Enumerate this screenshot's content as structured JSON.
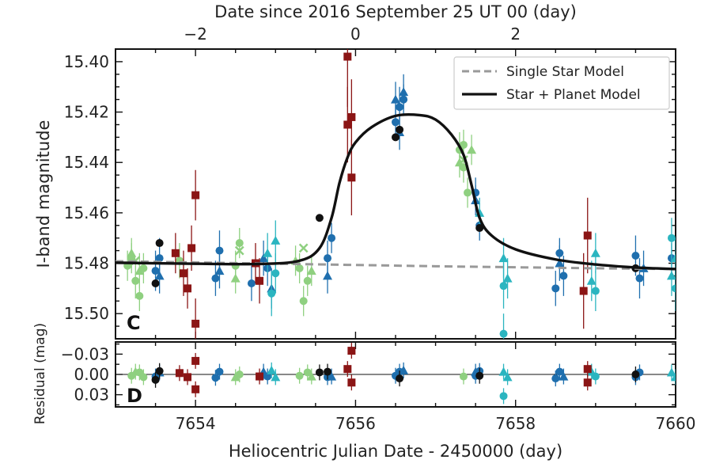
{
  "chart_data": {
    "type": "scatter",
    "colors": {
      "green": "#8fd080",
      "dblue": "#1f6fae",
      "cyan": "#2bb5c0",
      "dred": "#8b1515",
      "black": "#111111",
      "single": "#999999",
      "model": "#111111"
    },
    "top_axis": {
      "label": "Date since 2016 September 25 UT 00 (day)",
      "ticks": [
        {
          "value": -2,
          "label": "−2"
        },
        {
          "value": 0,
          "label": "0"
        },
        {
          "value": 2,
          "label": "2"
        }
      ]
    },
    "main": {
      "ylabel": "I-band magnitude",
      "ylim": [
        15.51,
        15.395
      ],
      "yticks": [
        {
          "value": 15.4,
          "label": "15.40"
        },
        {
          "value": 15.42,
          "label": "15.42"
        },
        {
          "value": 15.44,
          "label": "15.44"
        },
        {
          "value": 15.46,
          "label": "15.46"
        },
        {
          "value": 15.48,
          "label": "15.48"
        },
        {
          "value": 15.5,
          "label": "15.50"
        }
      ],
      "panel_letter": "C",
      "legend": {
        "position": "top-right",
        "entries": [
          {
            "label": "Single Star Model",
            "style": "dashed"
          },
          {
            "label": "Star + Planet Model",
            "style": "solid"
          }
        ]
      },
      "models": {
        "single": {
          "name": "Single Star Model",
          "x": [
            7653.0,
            7654,
            7655,
            7656,
            7657,
            7658,
            7659,
            7660.0
          ],
          "y": [
            15.4792,
            15.4797,
            15.4802,
            15.4807,
            15.4812,
            15.4816,
            15.482,
            15.4823
          ]
        },
        "planet": {
          "name": "Star + Planet Model",
          "x": [
            7653.0,
            7654.0,
            7654.8,
            7655.3,
            7655.55,
            7655.7,
            7655.8,
            7655.9,
            7656.0,
            7656.2,
            7656.5,
            7656.8,
            7657.0,
            7657.2,
            7657.35,
            7657.45,
            7657.55,
            7657.7,
            7658.0,
            7658.5,
            7659.0,
            7659.5,
            7660.0
          ],
          "y": [
            15.4798,
            15.4802,
            15.4803,
            15.479,
            15.474,
            15.462,
            15.448,
            15.438,
            15.432,
            15.426,
            15.4215,
            15.4212,
            15.423,
            15.429,
            15.437,
            15.449,
            15.462,
            15.469,
            15.4745,
            15.4785,
            15.4805,
            15.4817,
            15.4823
          ]
        }
      },
      "series": [
        {
          "color": "green",
          "marker": "circle",
          "points": [
            [
              7653.15,
              15.481,
              0.006
            ],
            [
              7653.2,
              15.478,
              0.006
            ],
            [
              7653.25,
              15.487,
              0.007
            ],
            [
              7653.3,
              15.493,
              0.006
            ],
            [
              7653.35,
              15.482,
              0.006
            ],
            [
              7653.8,
              15.479,
              0.007
            ],
            [
              7654.55,
              15.472,
              0.006
            ],
            [
              7654.5,
              15.481,
              0.006
            ],
            [
              7655.3,
              15.482,
              0.006
            ],
            [
              7655.35,
              15.495,
              0.006
            ],
            [
              7655.4,
              15.487,
              0.006
            ],
            [
              7657.3,
              15.435,
              0.007
            ],
            [
              7657.35,
              15.442,
              0.006
            ],
            [
              7657.4,
              15.452,
              0.006
            ],
            [
              7657.35,
              15.433,
              0.006
            ]
          ]
        },
        {
          "color": "green",
          "marker": "triangle",
          "points": [
            [
              7653.2,
              15.476,
              0.006
            ],
            [
              7653.3,
              15.483,
              0.007
            ],
            [
              7654.5,
              15.486,
              0.006
            ],
            [
              7655.25,
              15.479,
              0.006
            ],
            [
              7655.45,
              15.483,
              0.006
            ],
            [
              7657.3,
              15.44,
              0.006
            ],
            [
              7657.45,
              15.435,
              0.006
            ]
          ]
        },
        {
          "color": "green",
          "marker": "cross",
          "points": [
            [
              7653.25,
              15.479
            ],
            [
              7654.55,
              15.475
            ],
            [
              7655.35,
              15.474
            ],
            [
              7657.35,
              15.439
            ]
          ]
        },
        {
          "color": "dblue",
          "marker": "circle",
          "points": [
            [
              7653.5,
              15.483,
              0.008
            ],
            [
              7653.55,
              15.478,
              0.008
            ],
            [
              7654.25,
              15.486,
              0.007
            ],
            [
              7654.3,
              15.475,
              0.008
            ],
            [
              7654.9,
              15.482,
              0.007
            ],
            [
              7655.65,
              15.478,
              0.007
            ],
            [
              7655.7,
              15.47,
              0.006
            ],
            [
              7656.5,
              15.424,
              0.007
            ],
            [
              7656.55,
              15.418,
              0.008
            ],
            [
              7656.6,
              15.415,
              0.006
            ],
            [
              7657.5,
              15.452,
              0.006
            ],
            [
              7657.55,
              15.465,
              0.006
            ],
            [
              7658.5,
              15.49,
              0.007
            ],
            [
              7658.55,
              15.476,
              0.006
            ],
            [
              7658.6,
              15.485,
              0.008
            ],
            [
              7659.5,
              15.477,
              0.008
            ],
            [
              7659.55,
              15.486,
              0.008
            ],
            [
              7659.95,
              15.478,
              0.006
            ],
            [
              7654.7,
              15.488,
              0.007
            ]
          ]
        },
        {
          "color": "dblue",
          "marker": "triangle",
          "points": [
            [
              7653.55,
              15.485,
              0.007
            ],
            [
              7654.3,
              15.483,
              0.007
            ],
            [
              7654.85,
              15.478,
              0.007
            ],
            [
              7654.95,
              15.49,
              0.008
            ],
            [
              7655.65,
              15.485,
              0.007
            ],
            [
              7656.5,
              15.415,
              0.007
            ],
            [
              7656.55,
              15.428,
              0.007
            ],
            [
              7656.6,
              15.412,
              0.007
            ],
            [
              7657.5,
              15.455,
              0.006
            ],
            [
              7658.55,
              15.48,
              0.007
            ],
            [
              7659.6,
              15.482,
              0.007
            ]
          ]
        },
        {
          "color": "cyan",
          "marker": "triangle",
          "points": [
            [
              7654.9,
              15.476,
              0.008
            ],
            [
              7655.0,
              15.471,
              0.008
            ],
            [
              7657.55,
              15.46,
              0.006
            ],
            [
              7657.85,
              15.478,
              0.008
            ],
            [
              7657.9,
              15.486,
              0.008
            ],
            [
              7658.95,
              15.487,
              0.008
            ],
            [
              7659.0,
              15.476,
              0.008
            ],
            [
              7659.95,
              15.485,
              0.008
            ],
            [
              7660.0,
              15.478,
              0.008
            ]
          ]
        },
        {
          "color": "cyan",
          "marker": "circle",
          "points": [
            [
              7654.95,
              15.492,
              0.009
            ],
            [
              7655.0,
              15.484,
              0.008
            ],
            [
              7657.85,
              15.489,
              0.009
            ],
            [
              7659.0,
              15.491,
              0.008
            ],
            [
              7660.0,
              15.49,
              0.009
            ],
            [
              7659.95,
              15.47,
              0.008
            ],
            [
              7657.85,
              15.508,
              0.008
            ]
          ]
        },
        {
          "color": "dred",
          "marker": "square",
          "points": [
            [
              7653.75,
              15.476,
              0.008
            ],
            [
              7653.85,
              15.484,
              0.009
            ],
            [
              7653.9,
              15.49,
              0.008
            ],
            [
              7653.95,
              15.474,
              0.009
            ],
            [
              7654.0,
              15.453,
              0.01
            ],
            [
              7654.0,
              15.504,
              0.01
            ],
            [
              7654.75,
              15.48,
              0.008
            ],
            [
              7654.8,
              15.487,
              0.009
            ],
            [
              7655.9,
              15.398,
              0.02
            ],
            [
              7655.95,
              15.422,
              0.015
            ],
            [
              7655.95,
              15.446,
              0.015
            ],
            [
              7655.9,
              15.425,
              0.015
            ],
            [
              7658.9,
              15.469,
              0.015
            ],
            [
              7658.85,
              15.491,
              0.015
            ]
          ]
        },
        {
          "color": "black",
          "marker": "circle",
          "points": [
            [
              7653.55,
              15.472
            ],
            [
              7653.5,
              15.488
            ],
            [
              7655.55,
              15.462
            ],
            [
              7656.5,
              15.43
            ],
            [
              7656.55,
              15.427
            ],
            [
              7657.55,
              15.466
            ],
            [
              7659.5,
              15.482
            ]
          ]
        }
      ]
    },
    "residual": {
      "ylabel": "Residual (mag)",
      "ylim": [
        0.048,
        -0.048
      ],
      "yticks": [
        {
          "value": -0.03,
          "label": "−0.03"
        },
        {
          "value": 0.0,
          "label": "0.00"
        },
        {
          "value": 0.03,
          "label": "0.03"
        }
      ],
      "panel_letter": "D",
      "series": [
        {
          "color": "green",
          "marker": "circle",
          "points": [
            [
              7653.2,
              0.002
            ],
            [
              7653.3,
              -0.003
            ],
            [
              7653.35,
              0.004
            ],
            [
              7654.55,
              0.0
            ],
            [
              7655.3,
              0.002
            ],
            [
              7655.4,
              -0.003
            ],
            [
              7657.35,
              0.003
            ]
          ]
        },
        {
          "color": "green",
          "marker": "triangle",
          "points": [
            [
              7653.25,
              -0.004
            ],
            [
              7654.5,
              0.004
            ],
            [
              7655.45,
              0.003
            ]
          ]
        },
        {
          "color": "dblue",
          "marker": "circle",
          "points": [
            [
              7653.5,
              0.003
            ],
            [
              7654.25,
              0.005
            ],
            [
              7654.3,
              -0.004
            ],
            [
              7654.9,
              0.003
            ],
            [
              7655.65,
              0.004
            ],
            [
              7656.5,
              0.002
            ],
            [
              7656.55,
              -0.004
            ],
            [
              7657.5,
              0.002
            ],
            [
              7657.55,
              -0.005
            ],
            [
              7658.5,
              0.006
            ],
            [
              7658.55,
              -0.004
            ],
            [
              7659.5,
              0.004
            ],
            [
              7659.55,
              -0.003
            ]
          ]
        },
        {
          "color": "dblue",
          "marker": "triangle",
          "points": [
            [
              7653.55,
              -0.003
            ],
            [
              7654.85,
              -0.004
            ],
            [
              7655.7,
              0.003
            ],
            [
              7656.6,
              -0.006
            ],
            [
              7657.5,
              -0.004
            ],
            [
              7658.6,
              0.003
            ]
          ]
        },
        {
          "color": "cyan",
          "marker": "triangle",
          "points": [
            [
              7654.95,
              -0.006
            ],
            [
              7655.0,
              0.004
            ],
            [
              7657.85,
              -0.004
            ],
            [
              7657.9,
              0.004
            ],
            [
              7658.95,
              -0.004
            ],
            [
              7659.95,
              -0.003
            ],
            [
              7660.0,
              0.004
            ]
          ]
        },
        {
          "color": "cyan",
          "marker": "circle",
          "points": [
            [
              7657.85,
              0.032
            ],
            [
              7659.0,
              0.003
            ]
          ]
        },
        {
          "color": "dred",
          "marker": "square",
          "points": [
            [
              7653.8,
              -0.002
            ],
            [
              7653.9,
              0.004
            ],
            [
              7654.0,
              -0.02
            ],
            [
              7654.0,
              0.022
            ],
            [
              7654.8,
              0.003
            ],
            [
              7655.9,
              -0.008
            ],
            [
              7655.95,
              -0.035
            ],
            [
              7655.95,
              0.012
            ],
            [
              7658.9,
              -0.008
            ],
            [
              7658.9,
              0.012
            ]
          ]
        },
        {
          "color": "black",
          "marker": "circle",
          "points": [
            [
              7653.5,
              0.008
            ],
            [
              7653.55,
              -0.005
            ],
            [
              7655.55,
              -0.003
            ],
            [
              7655.65,
              -0.004
            ],
            [
              7656.55,
              0.006
            ],
            [
              7657.55,
              0.002
            ],
            [
              7659.5,
              0.0
            ]
          ]
        }
      ]
    },
    "bottom_axis": {
      "label": "Heliocentric Julian Date - 2450000 (day)",
      "xlim": [
        7653.0,
        7660.0
      ],
      "ticks": [
        {
          "value": 7654,
          "label": "7654"
        },
        {
          "value": 7656,
          "label": "7656"
        },
        {
          "value": 7658,
          "label": "7658"
        },
        {
          "value": 7660,
          "label": "7660"
        }
      ]
    }
  }
}
